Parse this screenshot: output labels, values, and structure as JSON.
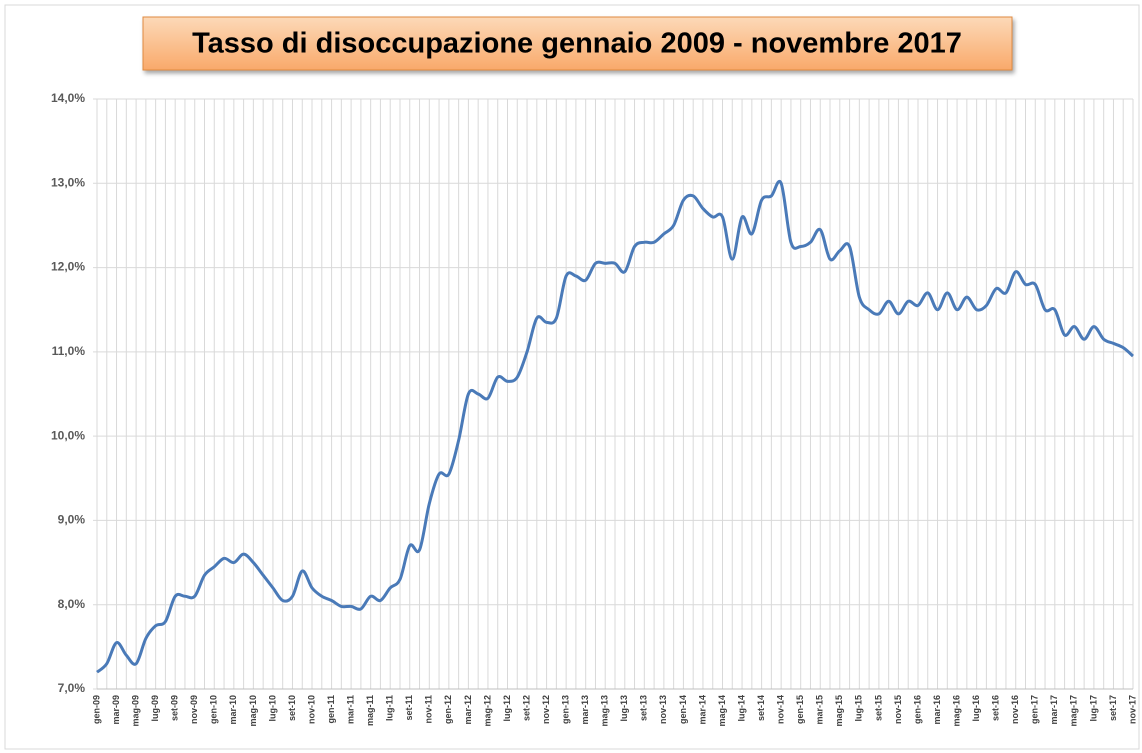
{
  "chart_data": {
    "type": "line",
    "title": "Tasso di disoccupazione gennaio 2009 - novembre 2017",
    "categories": [
      "gen-09",
      null,
      "mar-09",
      null,
      "mag-09",
      null,
      "lug-09",
      null,
      "set-09",
      null,
      "nov-09",
      null,
      "gen-10",
      null,
      "mar-10",
      null,
      "mag-10",
      null,
      "lug-10",
      null,
      "set-10",
      null,
      "nov-10",
      null,
      "gen-11",
      null,
      "mar-11",
      null,
      "mag-11",
      null,
      "lug-11",
      null,
      "set-11",
      null,
      "nov-11",
      null,
      "gen-12",
      null,
      "mar-12",
      null,
      "mag-12",
      null,
      "lug-12",
      null,
      "set-12",
      null,
      "nov-12",
      null,
      "gen-13",
      null,
      "mar-13",
      null,
      "mag-13",
      null,
      "lug-13",
      null,
      "set-13",
      null,
      "nov-13",
      null,
      "gen-14",
      null,
      "mar-14",
      null,
      "mag-14",
      null,
      "lug-14",
      null,
      "set-14",
      null,
      "nov-14",
      null,
      "gen-15",
      null,
      "mar-15",
      null,
      "mag-15",
      null,
      "lug-15",
      null,
      "set-15",
      null,
      "nov-15",
      null,
      "gen-16",
      null,
      "mar-16",
      null,
      "mag-16",
      null,
      "lug-16",
      null,
      "set-16",
      null,
      "nov-16",
      null,
      "gen-17",
      null,
      "mar-17",
      null,
      "mag-17",
      null,
      "lug-17",
      null,
      "set-17",
      null,
      "nov-17"
    ],
    "series": [
      {
        "color": "#4a7ab8",
        "values": [
          7.2,
          7.3,
          7.55,
          7.4,
          7.3,
          7.6,
          7.75,
          7.8,
          8.1,
          8.1,
          8.1,
          8.35,
          8.45,
          8.55,
          8.5,
          8.6,
          8.5,
          8.35,
          8.2,
          8.05,
          8.1,
          8.4,
          8.2,
          8.1,
          8.05,
          7.98,
          7.98,
          7.95,
          8.1,
          8.05,
          8.2,
          8.3,
          8.7,
          8.65,
          9.2,
          9.55,
          9.55,
          9.95,
          10.5,
          10.5,
          10.45,
          10.7,
          10.65,
          10.7,
          11.0,
          11.4,
          11.35,
          11.4,
          11.9,
          11.9,
          11.85,
          12.05,
          12.05,
          12.05,
          11.95,
          12.25,
          12.3,
          12.3,
          12.4,
          12.5,
          12.8,
          12.85,
          12.7,
          12.6,
          12.6,
          12.1,
          12.6,
          12.4,
          12.8,
          12.85,
          13.0,
          12.3,
          12.25,
          12.3,
          12.45,
          12.1,
          12.2,
          12.25,
          11.65,
          11.5,
          11.45,
          11.6,
          11.45,
          11.6,
          11.55,
          11.7,
          11.5,
          11.7,
          11.5,
          11.65,
          11.5,
          11.55,
          11.75,
          11.7,
          11.95,
          11.8,
          11.8,
          11.5,
          11.5,
          11.2,
          11.3,
          11.15,
          11.3,
          11.15,
          11.1,
          11.05,
          10.95
        ]
      }
    ],
    "ylim": [
      7,
      14
    ],
    "yticks": [
      {
        "value": 7,
        "label": "7,0%"
      },
      {
        "value": 8,
        "label": "8,0%"
      },
      {
        "value": 9,
        "label": "9,0%"
      },
      {
        "value": 10,
        "label": "10,0%"
      },
      {
        "value": 11,
        "label": "11,0%"
      },
      {
        "value": 12,
        "label": "12,0%"
      },
      {
        "value": 13,
        "label": "13,0%"
      },
      {
        "value": 14,
        "label": "14,0%"
      }
    ],
    "grid": true
  }
}
